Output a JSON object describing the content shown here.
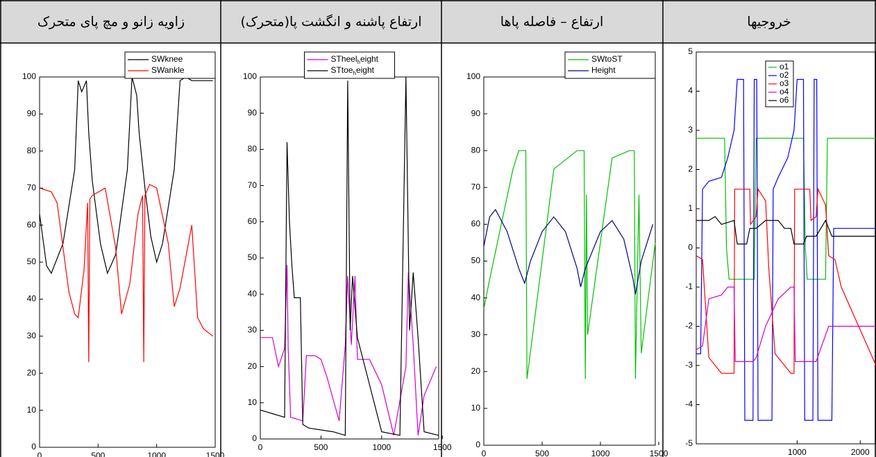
{
  "chart_data": [
    {
      "type": "line",
      "title": "زاویه زانو و مچ پای متحرک",
      "legend": "upper right",
      "xlim": [
        0,
        1500
      ],
      "ylim": [
        0,
        100
      ],
      "xticks": [
        0,
        500,
        1000,
        1500
      ],
      "yticks": [
        0,
        10,
        20,
        30,
        40,
        50,
        60,
        70,
        80,
        90,
        100
      ],
      "series": [
        {
          "name": "SWknee",
          "color": "#000000",
          "x": [
            0,
            60,
            100,
            200,
            300,
            330,
            360,
            400,
            420,
            450,
            520,
            580,
            650,
            750,
            790,
            830,
            850,
            900,
            950,
            1000,
            1050,
            1150,
            1200,
            1250,
            1300,
            1480
          ],
          "values": [
            63,
            49,
            47,
            55,
            75,
            99,
            96,
            99,
            85,
            72,
            55,
            47,
            52,
            75,
            100,
            95,
            85,
            70,
            57,
            50,
            55,
            75,
            99,
            100,
            99,
            99
          ]
        },
        {
          "name": "SWankle",
          "color": "#ff0000",
          "x": [
            0,
            100,
            150,
            250,
            300,
            330,
            380,
            410,
            420,
            430,
            450,
            560,
            650,
            700,
            770,
            840,
            880,
            890,
            900,
            940,
            1000,
            1100,
            1150,
            1200,
            1300,
            1350,
            1400,
            1480
          ],
          "values": [
            70,
            69,
            66,
            42,
            36,
            35,
            48,
            66,
            23,
            67,
            68,
            70,
            54,
            36,
            44,
            63,
            68,
            23,
            68,
            71,
            70,
            55,
            38,
            43,
            60,
            35,
            32,
            30
          ]
        }
      ]
    },
    {
      "type": "line",
      "title": "ارتفاع پاشنه و انگشت پا(متحرک)",
      "legend": "upper center",
      "xlim": [
        0,
        1470
      ],
      "ylim": [
        0,
        100
      ],
      "xticks": [
        0,
        500,
        1000,
        1500
      ],
      "yticks": [
        0,
        10,
        20,
        30,
        40,
        50,
        60,
        70,
        80,
        90,
        100
      ],
      "series": [
        {
          "name": "STheel_height",
          "color": "#d000d0",
          "x": [
            0,
            100,
            150,
            200,
            220,
            230,
            250,
            350,
            380,
            450,
            500,
            550,
            650,
            700,
            720,
            750,
            780,
            800,
            900,
            1000,
            1100,
            1200,
            1220,
            1260,
            1300,
            1350,
            1450
          ],
          "values": [
            28,
            28,
            20,
            25,
            48,
            25,
            6,
            5,
            23,
            23,
            22,
            17,
            5,
            26,
            45,
            26,
            45,
            22,
            22,
            15,
            1,
            20,
            46,
            26,
            1,
            12,
            20
          ]
        },
        {
          "name": "STtoe_height",
          "color": "#000000",
          "x": [
            0,
            100,
            200,
            220,
            240,
            260,
            280,
            330,
            350,
            400,
            600,
            700,
            720,
            740,
            760,
            800,
            1000,
            1150,
            1200,
            1230,
            1260,
            1300,
            1350,
            1470
          ],
          "values": [
            8,
            7,
            6,
            82,
            60,
            48,
            39,
            39,
            4,
            3,
            2,
            1,
            99,
            30,
            45,
            28,
            2,
            1,
            100,
            30,
            46,
            28,
            2,
            1
          ]
        }
      ]
    },
    {
      "type": "line",
      "title": "ارتفاع – فاصله پاها",
      "legend": "upper right",
      "xlim": [
        0,
        1470
      ],
      "ylim": [
        0,
        100
      ],
      "xticks": [
        0,
        500,
        1000,
        1500
      ],
      "yticks": [
        0,
        10,
        20,
        30,
        40,
        50,
        60,
        70,
        80,
        90,
        100
      ],
      "series": [
        {
          "name": "SWtoST",
          "color": "#00c000",
          "x": [
            0,
            50,
            250,
            300,
            360,
            370,
            600,
            800,
            860,
            870,
            880,
            890,
            1100,
            1250,
            1290,
            1300,
            1330,
            1350,
            1470
          ],
          "values": [
            37,
            45,
            75,
            80,
            80,
            18,
            75,
            80,
            80,
            18,
            68,
            30,
            78,
            80,
            80,
            18,
            68,
            25,
            55
          ]
        },
        {
          "name": "Height",
          "color": "#000080",
          "x": [
            0,
            50,
            100,
            200,
            300,
            350,
            400,
            500,
            600,
            700,
            800,
            830,
            870,
            1000,
            1100,
            1200,
            1280,
            1300,
            1350,
            1450
          ],
          "values": [
            54,
            62,
            64,
            58,
            48,
            44,
            50,
            58,
            62,
            58,
            48,
            43,
            48,
            58,
            61,
            56,
            45,
            41,
            50,
            60
          ]
        }
      ]
    },
    {
      "type": "line",
      "title": "خروجیها",
      "legend": "upper left",
      "xlim": [
        -600,
        2250
      ],
      "ylim": [
        -5,
        5
      ],
      "xticks": [
        1000,
        2000
      ],
      "yticks": [
        -5,
        -4,
        -3,
        -2,
        -1,
        0,
        1,
        2,
        3,
        4,
        5
      ],
      "series": [
        {
          "name": "o1",
          "color": "#00c000",
          "x": [
            -600,
            -150,
            -120,
            -80,
            320,
            350,
            1100,
            1130,
            1160,
            1450,
            1480,
            2250
          ],
          "values": [
            2.8,
            2.8,
            0,
            -0.8,
            -0.8,
            2.8,
            2.8,
            0,
            -0.8,
            -0.8,
            2.8,
            2.8
          ]
        },
        {
          "name": "o2",
          "color": "#0000ff",
          "x": [
            -600,
            -530,
            -500,
            -400,
            -200,
            -100,
            0,
            50,
            150,
            170,
            300,
            320,
            360,
            380,
            600,
            620,
            700,
            850,
            950,
            1000,
            1100,
            1120,
            1250,
            1270,
            1310,
            1330,
            1550,
            1580,
            2250
          ],
          "values": [
            -2.7,
            -2.7,
            1.5,
            1.7,
            1.8,
            2.3,
            3,
            4.3,
            4.3,
            -4.4,
            -4.4,
            4.3,
            4.3,
            -4.4,
            -4.4,
            1.5,
            1.8,
            2.3,
            3,
            4.3,
            4.3,
            -4.4,
            -4.4,
            4.3,
            4.3,
            -4.4,
            -4.4,
            0.5,
            0.5
          ]
        },
        {
          "name": "o3",
          "color": "#ff0000",
          "x": [
            -600,
            -500,
            -400,
            -200,
            0,
            10,
            250,
            260,
            350,
            380,
            500,
            550,
            650,
            900,
            950,
            960,
            1200,
            1220,
            1300,
            1330,
            1450,
            1500,
            1600,
            1700,
            2250
          ],
          "values": [
            -0.2,
            -0.3,
            -2.8,
            -3.2,
            -3.2,
            1.5,
            1.5,
            0.6,
            0.8,
            1.5,
            1.2,
            -0.5,
            -2.7,
            -3.2,
            -3.2,
            1.5,
            1.5,
            0.7,
            0.8,
            1.5,
            1.1,
            -0.2,
            -0.3,
            -1.0,
            -3.0
          ]
        },
        {
          "name": "o4",
          "color": "#d000d0",
          "x": [
            -600,
            -500,
            -400,
            -200,
            -100,
            0,
            20,
            300,
            350,
            500,
            700,
            900,
            950,
            970,
            1300,
            1500,
            2250
          ],
          "values": [
            -2.6,
            -2.5,
            -1.3,
            -1.2,
            -1.0,
            -1.0,
            -2.9,
            -2.9,
            -2.8,
            -2.0,
            -1.3,
            -1.0,
            -1.0,
            -2.9,
            -2.9,
            -2.0,
            -2.0
          ]
        },
        {
          "name": "o6",
          "color": "#000000",
          "x": [
            -600,
            -400,
            -300,
            -200,
            0,
            50,
            200,
            250,
            350,
            500,
            700,
            800,
            900,
            950,
            1100,
            1150,
            1300,
            1450,
            1550,
            2250
          ],
          "values": [
            0.7,
            0.7,
            0.8,
            0.6,
            0.7,
            0.1,
            0.1,
            0.5,
            0.5,
            0.7,
            0.7,
            0.5,
            0.5,
            0.1,
            0.1,
            0.3,
            0.3,
            0.7,
            0.3,
            0.3
          ]
        }
      ]
    }
  ]
}
